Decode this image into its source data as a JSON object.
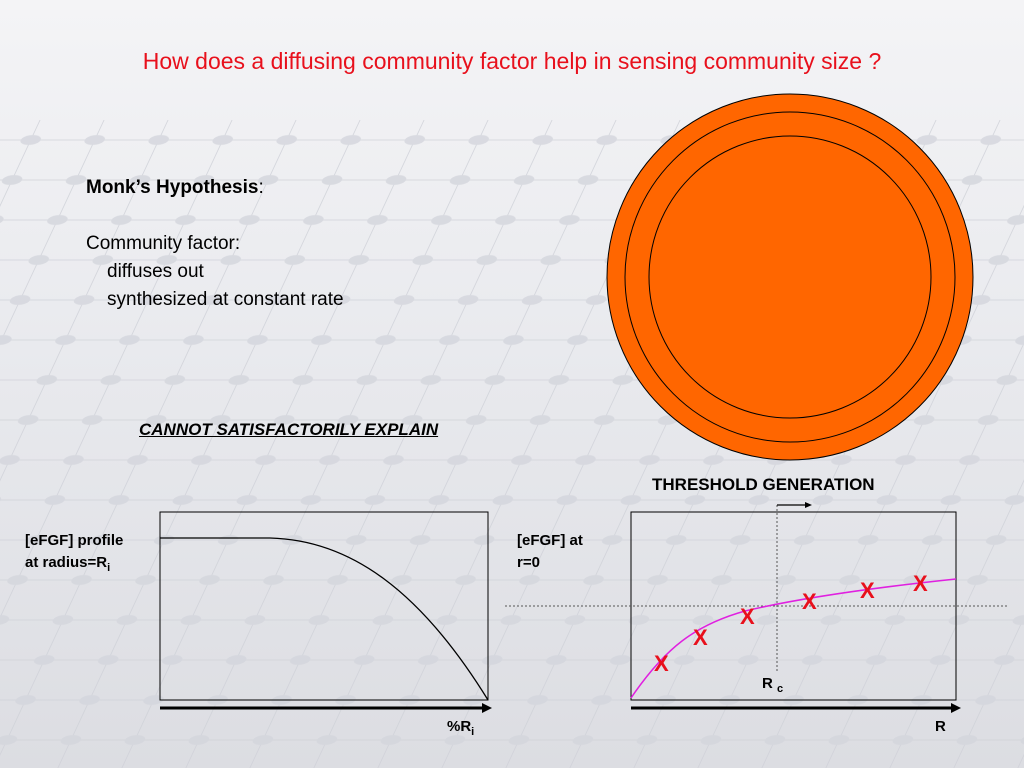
{
  "slide": {
    "title": "How does a diffusing community factor help in sensing community size ?"
  },
  "hypothesis": {
    "heading": "Monk’s Hypothesis",
    "heading_suffix": ":",
    "factor_label": "Community factor:",
    "points": [
      "diffuses out",
      "synthesized at constant rate"
    ]
  },
  "cannot_explain": "CANNOT SATISFACTORILY EXPLAIN",
  "threshold_label": "THRESHOLD GENERATION",
  "left_graph": {
    "ylabel_line1": "[eFGF] profile",
    "ylabel_line2": "at radius=R",
    "ylabel_sub": "i",
    "xlabel": "%R",
    "xlabel_sub": "i"
  },
  "right_graph": {
    "ylabel_line1": "[eFGF] at",
    "ylabel_line2": "r=0",
    "xlabel": "R",
    "rc_label": "R",
    "rc_sub": "c",
    "marker": "X",
    "marker_count": 6
  },
  "colors": {
    "title": "#e8101c",
    "circle_fill": "#ff6600",
    "curve_right": "#e020e0",
    "marker": "#e8101c"
  }
}
